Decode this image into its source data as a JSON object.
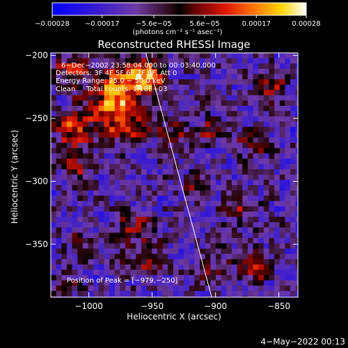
{
  "chart_data": {
    "type": "heatmap",
    "title": "Reconstructed RHESSI Image",
    "xlabel": "Heliocentric X (arcsec)",
    "ylabel": "Heliocentric Y (arcsec)",
    "xlim": [
      -1030,
      -835
    ],
    "ylim": [
      -392,
      -198
    ],
    "xticks": [
      -1000,
      -950,
      -900,
      -850
    ],
    "yticks": [
      -200,
      -250,
      -300,
      -350
    ],
    "xtick_labels": [
      "−1000",
      "−950",
      "−900",
      "−850"
    ],
    "ytick_labels": [
      "−200",
      "−250",
      "−300",
      "−350"
    ],
    "colorbar": {
      "ticks": [
        -0.00028,
        -0.00017,
        -5.6e-05,
        5.6e-05,
        0.00017,
        0.00028
      ],
      "tick_labels": [
        "−0.00028",
        "−0.00017",
        "−5.6e−05",
        "5.6e−05",
        "0.00017",
        "0.00028"
      ],
      "unit_label": "(photons cm⁻² s⁻¹ asec⁻²)",
      "range": [
        -0.00028,
        0.00028
      ]
    },
    "annotations": [
      "6−Dec−2002 23:58:04.000 to 00:03:40.000",
      "Detectors: 3F 4F 5F 6F 7F 8F, Att 0",
      "Energy Range: 25.0 − 50.0 keV",
      "Clean     Total counts: 1.18E+03"
    ],
    "peak_label": "Position of Peak = [−979,−250]",
    "peak": {
      "x": -979,
      "y": -250
    },
    "limb_line": [
      {
        "x": -955,
        "y": -198
      },
      {
        "x": -903,
        "y": -392
      }
    ],
    "emission_sources": [
      {
        "x": -978,
        "y": -236,
        "sx": 14,
        "sy": 20,
        "amp": 0.0003
      },
      {
        "x": -955,
        "y": -218,
        "sx": 9,
        "sy": 9,
        "amp": 0.0003
      },
      {
        "x": -1012,
        "y": -258,
        "sx": 10,
        "sy": 12,
        "amp": 0.0002
      },
      {
        "x": -1015,
        "y": -212,
        "sx": 10,
        "sy": 9,
        "amp": 0.00014
      },
      {
        "x": -1008,
        "y": -290,
        "sx": 8,
        "sy": 10,
        "amp": 0.00012
      },
      {
        "x": -962,
        "y": -262,
        "sx": 8,
        "sy": 7,
        "amp": 0.00015
      },
      {
        "x": -932,
        "y": -262,
        "sx": 9,
        "sy": 8,
        "amp": 0.00012
      },
      {
        "x": -903,
        "y": -260,
        "sx": 8,
        "sy": 8,
        "amp": 0.00014
      },
      {
        "x": -872,
        "y": -270,
        "sx": 10,
        "sy": 9,
        "amp": 0.00011
      },
      {
        "x": -855,
        "y": -226,
        "sx": 7,
        "sy": 10,
        "amp": 0.00015
      },
      {
        "x": -915,
        "y": -305,
        "sx": 8,
        "sy": 7,
        "amp": 0.0001
      },
      {
        "x": -880,
        "y": -322,
        "sx": 9,
        "sy": 7,
        "amp": 0.00012
      },
      {
        "x": -965,
        "y": -337,
        "sx": 12,
        "sy": 9,
        "amp": 0.00013
      },
      {
        "x": -1008,
        "y": -352,
        "sx": 8,
        "sy": 8,
        "amp": 0.0001
      },
      {
        "x": -955,
        "y": -365,
        "sx": 10,
        "sy": 8,
        "amp": 0.00015
      },
      {
        "x": -905,
        "y": -370,
        "sx": 9,
        "sy": 8,
        "amp": 0.00012
      },
      {
        "x": -870,
        "y": -368,
        "sx": 10,
        "sy": 9,
        "amp": 0.00013
      },
      {
        "x": -1020,
        "y": -380,
        "sx": 8,
        "sy": 7,
        "amp": 0.0001
      }
    ]
  },
  "footer": {
    "date_stamp": "4−May−2022 00:13"
  }
}
